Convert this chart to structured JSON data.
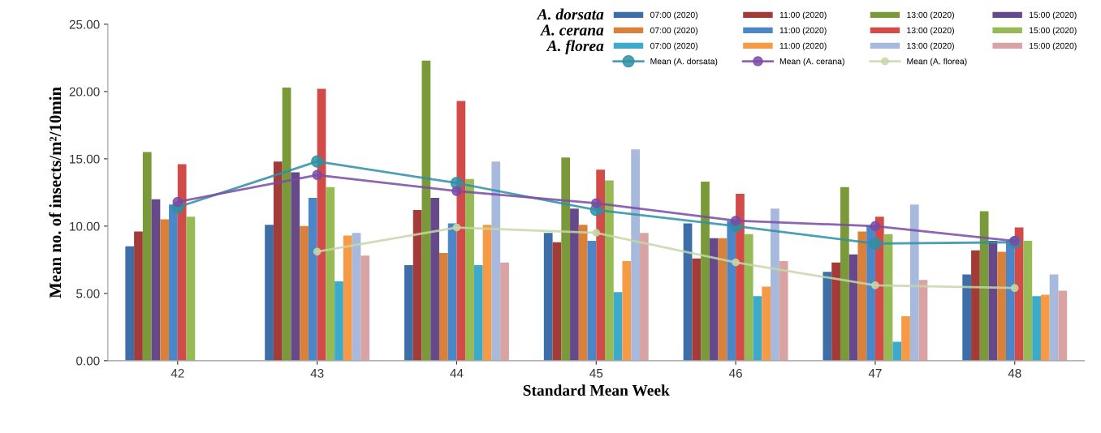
{
  "chart_data": {
    "type": "bar",
    "xlabel": "Standard Mean Week",
    "ylabel": "Mean no. of insects/m²/10min",
    "categories": [
      "42",
      "43",
      "44",
      "45",
      "46",
      "47",
      "48"
    ],
    "ylim": [
      0,
      25
    ],
    "yticks": [
      {
        "value": 0,
        "label": "0.00"
      },
      {
        "value": 5,
        "label": "5.00"
      },
      {
        "value": 10,
        "label": "10.00"
      },
      {
        "value": 15,
        "label": "15.00"
      },
      {
        "value": 20,
        "label": "20.00"
      },
      {
        "value": 25,
        "label": "25.00"
      }
    ],
    "grid": false,
    "legend": "top right",
    "annotations": [
      "A. dorsata",
      "A. cerana",
      "A. florea"
    ],
    "series": [
      {
        "name": "07:00 (2020)",
        "color": "#3e6ea8",
        "values": [
          8.5,
          10.1,
          7.1,
          9.5,
          10.2,
          6.6,
          6.4
        ]
      },
      {
        "name": "11:00 (2020)",
        "color": "#a33b38",
        "values": [
          9.6,
          14.8,
          11.2,
          8.8,
          7.6,
          7.3,
          8.2
        ]
      },
      {
        "name": "13:00 (2020)",
        "color": "#7a9a3a",
        "values": [
          15.5,
          20.3,
          22.3,
          15.1,
          13.3,
          12.9,
          11.1
        ]
      },
      {
        "name": "15:00 (2020)",
        "color": "#65498a",
        "values": [
          12.0,
          14.0,
          12.1,
          11.3,
          9.1,
          7.9,
          8.9
        ]
      },
      {
        "name": "07:00 (2020)",
        "color": "#d9813a",
        "values": [
          10.5,
          10.0,
          8.0,
          10.1,
          9.1,
          9.6,
          8.1
        ]
      },
      {
        "name": "11:00 (2020)",
        "color": "#4a86c8",
        "values": [
          11.6,
          12.1,
          10.2,
          8.9,
          10.4,
          10.0,
          8.9
        ]
      },
      {
        "name": "13:00 (2020)",
        "color": "#d24b48",
        "values": [
          14.6,
          20.2,
          19.3,
          14.2,
          12.4,
          10.7,
          9.9
        ]
      },
      {
        "name": "15:00 (2020)",
        "color": "#96bb55",
        "values": [
          10.7,
          12.9,
          13.5,
          13.4,
          9.4,
          9.4,
          8.9
        ]
      },
      {
        "name": "07:00 (2020)",
        "color": "#3eaacb",
        "values": [
          null,
          5.9,
          7.1,
          5.1,
          4.8,
          1.4,
          4.8
        ]
      },
      {
        "name": "11:00 (2020)",
        "color": "#f79a46",
        "values": [
          null,
          9.3,
          10.1,
          7.4,
          5.5,
          3.3,
          4.9
        ]
      },
      {
        "name": "13:00 (2020)",
        "color": "#a7b9dc",
        "values": [
          null,
          9.5,
          14.8,
          15.7,
          11.3,
          11.6,
          6.4
        ]
      },
      {
        "name": "15:00 (2020)",
        "color": "#d9a3a3",
        "values": [
          null,
          7.8,
          7.3,
          9.5,
          7.4,
          6.0,
          5.2
        ]
      },
      {
        "name": "Mean (A. dorsata)",
        "type": "line",
        "marker": "circle",
        "color": "#2e8fa6",
        "values": [
          11.4,
          14.8,
          13.2,
          11.2,
          10.0,
          8.7,
          8.8
        ]
      },
      {
        "name": "Mean (A. cerana)",
        "type": "line",
        "marker": "circle",
        "color": "#7a4aa6",
        "values": [
          11.8,
          13.8,
          12.6,
          11.7,
          10.4,
          10.0,
          8.9
        ]
      },
      {
        "name": "Mean (A. florea)",
        "type": "line",
        "marker": "circle",
        "color": "#c4d7a8",
        "values": [
          null,
          8.1,
          9.9,
          9.5,
          7.3,
          5.6,
          5.4
        ]
      }
    ]
  }
}
